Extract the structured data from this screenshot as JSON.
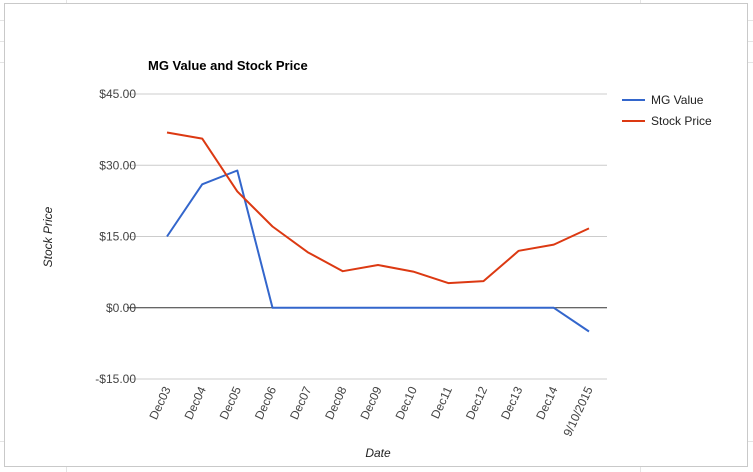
{
  "chart_data": {
    "type": "line",
    "title": "MG Value and Stock Price",
    "xlabel": "Date",
    "ylabel": "Stock Price",
    "categories": [
      "Dec03",
      "Dec04",
      "Dec05",
      "Dec06",
      "Dec07",
      "Dec08",
      "Dec09",
      "Dec10",
      "Dec11",
      "Dec12",
      "Dec13",
      "Dec14",
      "9/10/2015"
    ],
    "ylim": [
      -15,
      45
    ],
    "yticks": [
      45,
      30,
      15,
      0,
      -15
    ],
    "ytick_labels": [
      "$45.00",
      "$30.00",
      "$15.00",
      "$0.00",
      "-$15.00"
    ],
    "grid": true,
    "legend_position": "right",
    "series": [
      {
        "name": "MG Value",
        "color": "#3366cc",
        "values": [
          15.0,
          26.0,
          28.9,
          0.0,
          0.0,
          0.0,
          0.0,
          0.0,
          0.0,
          0.0,
          0.0,
          0.0,
          -5.0
        ]
      },
      {
        "name": "Stock Price",
        "color": "#dc3912",
        "values": [
          36.9,
          35.6,
          24.5,
          17.1,
          11.7,
          7.7,
          9.0,
          7.6,
          5.2,
          5.6,
          12.0,
          13.3,
          16.7
        ]
      }
    ]
  }
}
